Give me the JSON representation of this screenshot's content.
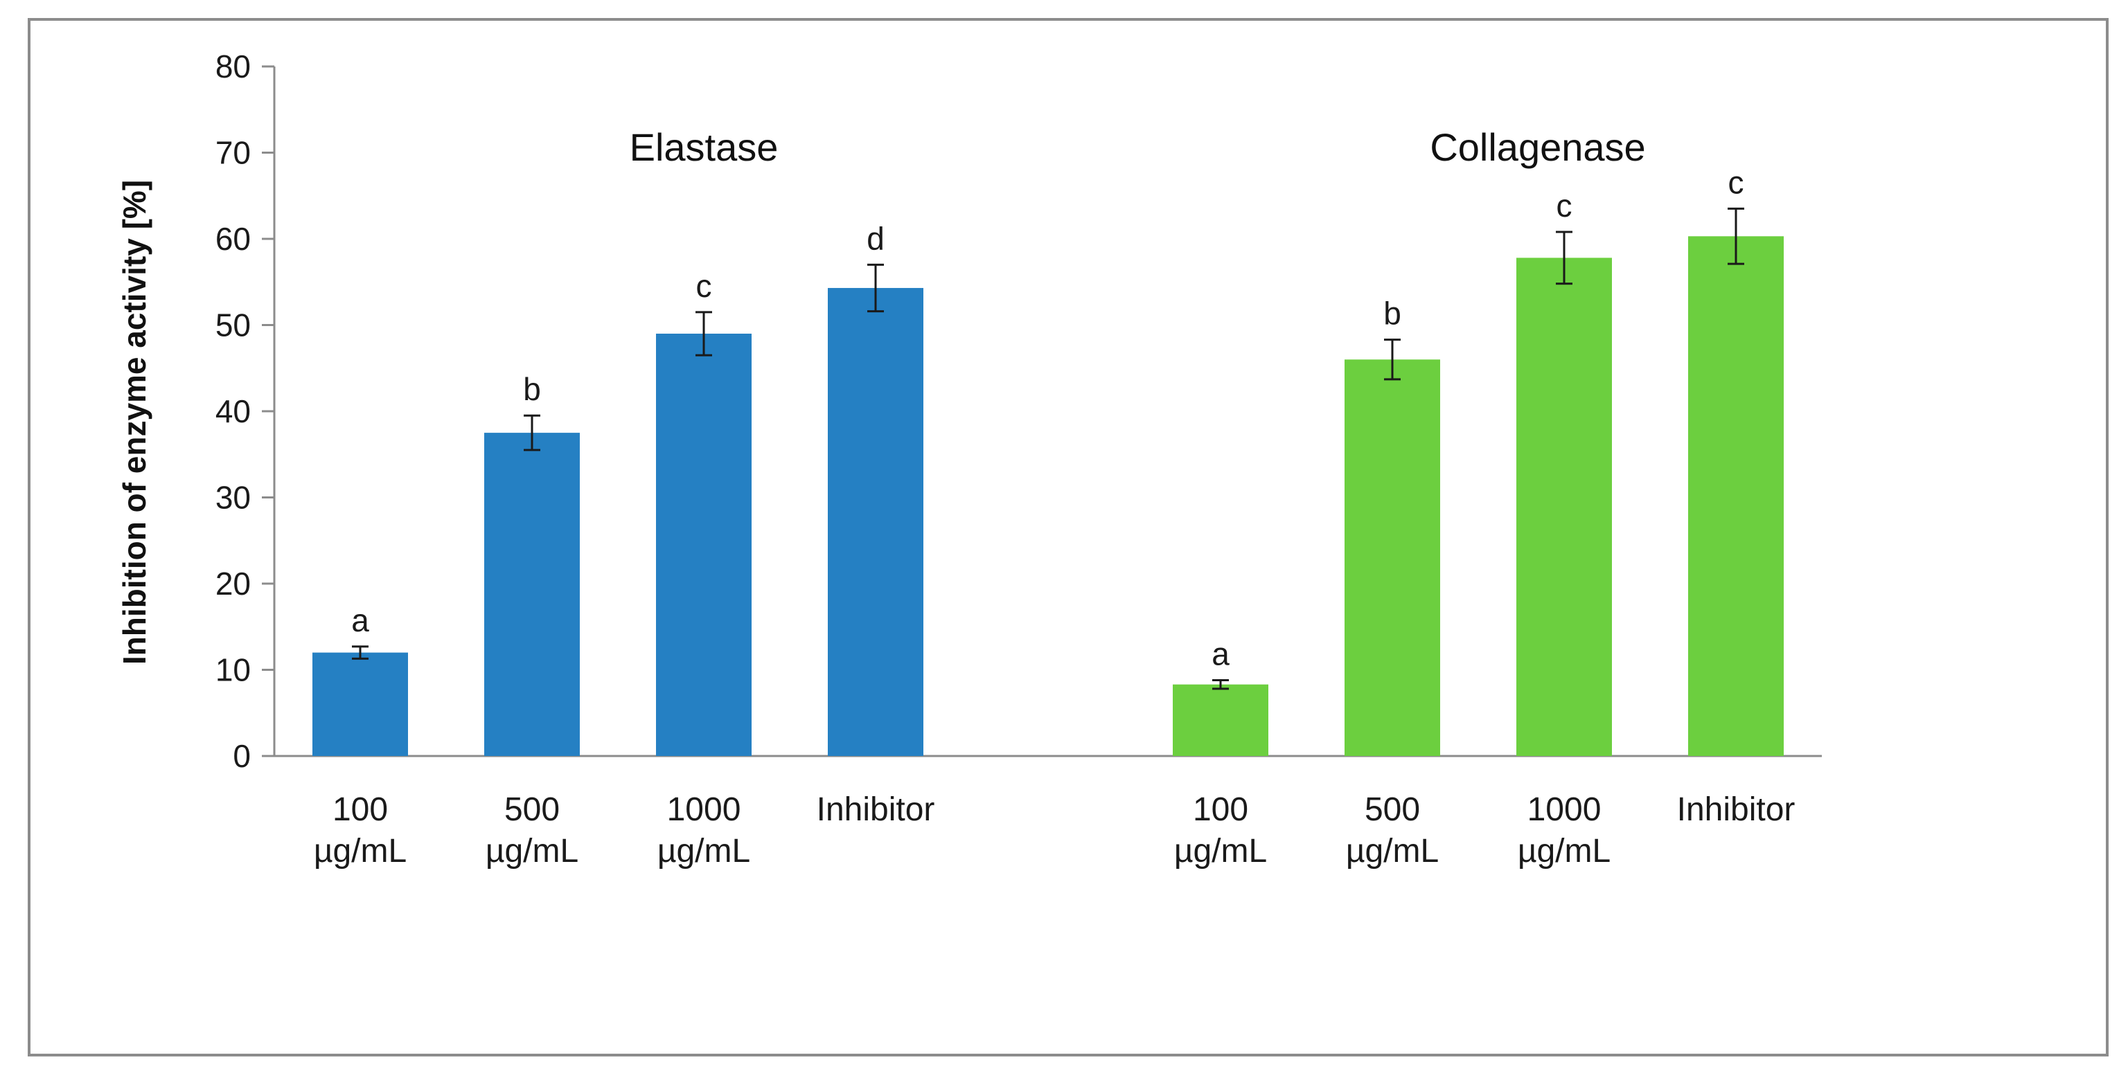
{
  "chart_data": {
    "type": "bar",
    "ylabel": "Inhibition of enzyme activity [%]",
    "xlabel": "",
    "ylim": [
      0,
      80
    ],
    "yticks": [
      0,
      10,
      20,
      30,
      40,
      50,
      60,
      70,
      80
    ],
    "grid": false,
    "legend": "none",
    "groups": [
      {
        "name": "Elastase",
        "color": "#2580c3",
        "categories": [
          [
            "100",
            "µg/mL"
          ],
          [
            "500",
            "µg/mL"
          ],
          [
            "1000",
            "µg/mL"
          ],
          [
            "Inhibitor"
          ]
        ],
        "values": [
          12.0,
          37.5,
          49.0,
          54.3
        ],
        "errors": [
          0.7,
          2.0,
          2.5,
          2.7
        ],
        "letters": [
          "a",
          "b",
          "c",
          "d"
        ]
      },
      {
        "name": "Collagenase",
        "color": "#6ccf3f",
        "categories": [
          [
            "100",
            "µg/mL"
          ],
          [
            "500",
            "µg/mL"
          ],
          [
            "1000",
            "µg/mL"
          ],
          [
            "Inhibitor"
          ]
        ],
        "values": [
          8.3,
          46.0,
          57.8,
          60.3
        ],
        "errors": [
          0.5,
          2.3,
          3.0,
          3.2
        ],
        "letters": [
          "a",
          "b",
          "c",
          "c"
        ]
      }
    ]
  }
}
